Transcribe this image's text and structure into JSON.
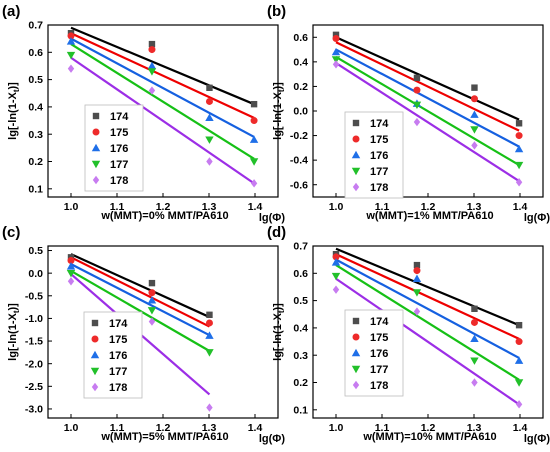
{
  "chart_data": [
    {
      "type": "scatter",
      "panel_label": "(a)",
      "xlabel": "lg(Φ)",
      "ylabel": "lg[-ln(1-X",
      "ylabel_sub": "t",
      "ylabel_end": ")]",
      "caption": "w(MMT)=0% MMT/PA610",
      "xlim": [
        0.95,
        1.45
      ],
      "ylim": [
        0.07,
        0.7
      ],
      "xticks": [
        1.0,
        1.1,
        1.2,
        1.3,
        1.4
      ],
      "yticks": [
        0.1,
        0.2,
        0.3,
        0.4,
        0.5,
        0.6,
        0.7
      ],
      "series": [
        {
          "name": "174",
          "x": [
            1.0,
            1.176,
            1.301,
            1.398
          ],
          "y": [
            0.67,
            0.63,
            0.47,
            0.41
          ],
          "fit": [
            [
              1.0,
              0.69
            ],
            [
              1.398,
              0.41
            ]
          ]
        },
        {
          "name": "175",
          "x": [
            1.0,
            1.176,
            1.301,
            1.398
          ],
          "y": [
            0.66,
            0.61,
            0.42,
            0.35
          ],
          "fit": [
            [
              1.0,
              0.67
            ],
            [
              1.398,
              0.36
            ]
          ]
        },
        {
          "name": "176",
          "x": [
            1.0,
            1.176,
            1.301,
            1.398
          ],
          "y": [
            0.64,
            0.55,
            0.36,
            0.28
          ],
          "fit": [
            [
              1.0,
              0.65
            ],
            [
              1.398,
              0.29
            ]
          ]
        },
        {
          "name": "177",
          "x": [
            1.0,
            1.176,
            1.301,
            1.398
          ],
          "y": [
            0.59,
            0.53,
            0.28,
            0.2
          ],
          "fit": [
            [
              1.0,
              0.63
            ],
            [
              1.398,
              0.21
            ]
          ]
        },
        {
          "name": "178",
          "x": [
            1.0,
            1.176,
            1.301,
            1.398
          ],
          "y": [
            0.54,
            0.46,
            0.2,
            0.12
          ],
          "fit": [
            [
              1.0,
              0.58
            ],
            [
              1.398,
              0.12
            ]
          ]
        }
      ]
    },
    {
      "type": "scatter",
      "panel_label": "(b)",
      "xlabel": "lg(Φ)",
      "ylabel": "lg[-ln(1-X",
      "ylabel_sub": "t",
      "ylabel_end": ")]",
      "caption": "w(MMT)=1% MMT/PA610",
      "xlim": [
        0.95,
        1.45
      ],
      "ylim": [
        -0.7,
        0.7
      ],
      "xticks": [
        1.0,
        1.1,
        1.2,
        1.3,
        1.4
      ],
      "yticks": [
        -0.6,
        -0.4,
        -0.2,
        0.0,
        0.2,
        0.4,
        0.6
      ],
      "series": [
        {
          "name": "174",
          "x": [
            1.0,
            1.176,
            1.301,
            1.398
          ],
          "y": [
            0.62,
            0.27,
            0.19,
            -0.1
          ],
          "fit": [
            [
              1.0,
              0.6
            ],
            [
              1.398,
              -0.07
            ]
          ]
        },
        {
          "name": "175",
          "x": [
            1.0,
            1.176,
            1.301,
            1.398
          ],
          "y": [
            0.59,
            0.17,
            0.1,
            -0.2
          ],
          "fit": [
            [
              1.0,
              0.56
            ],
            [
              1.398,
              -0.16
            ]
          ]
        },
        {
          "name": "176",
          "x": [
            1.0,
            1.176,
            1.301,
            1.398
          ],
          "y": [
            0.48,
            0.06,
            -0.03,
            -0.31
          ],
          "fit": [
            [
              1.0,
              0.5
            ],
            [
              1.398,
              -0.29
            ]
          ]
        },
        {
          "name": "177",
          "x": [
            1.0,
            1.176,
            1.301,
            1.398
          ],
          "y": [
            0.42,
            0.05,
            -0.15,
            -0.44
          ],
          "fit": [
            [
              1.0,
              0.44
            ],
            [
              1.398,
              -0.44
            ]
          ]
        },
        {
          "name": "178",
          "x": [
            1.0,
            1.176,
            1.301,
            1.398
          ],
          "y": [
            0.38,
            -0.09,
            -0.28,
            -0.58
          ],
          "fit": [
            [
              1.0,
              0.39
            ],
            [
              1.398,
              -0.57
            ]
          ]
        }
      ]
    },
    {
      "type": "scatter",
      "panel_label": "(c)",
      "xlabel": "lg(Φ)",
      "ylabel": "lg[-ln(1-X",
      "ylabel_sub": "t",
      "ylabel_end": ")]",
      "caption": "w(MMT)=5% MMT/PA610",
      "xlim": [
        0.95,
        1.45
      ],
      "ylim": [
        -3.2,
        0.6
      ],
      "xticks": [
        1.0,
        1.1,
        1.2,
        1.3,
        1.4
      ],
      "yticks": [
        -3.0,
        -2.5,
        -2.0,
        -1.5,
        -1.0,
        -0.5,
        0.0,
        0.5
      ],
      "series": [
        {
          "name": "174",
          "x": [
            1.0,
            1.176,
            1.301
          ],
          "y": [
            0.35,
            -0.22,
            -0.92
          ],
          "fit": [
            [
              1.0,
              0.42
            ],
            [
              1.301,
              -0.97
            ]
          ]
        },
        {
          "name": "175",
          "x": [
            1.0,
            1.176,
            1.301
          ],
          "y": [
            0.28,
            -0.43,
            -1.1
          ],
          "fit": [
            [
              1.0,
              0.35
            ],
            [
              1.301,
              -1.18
            ]
          ]
        },
        {
          "name": "176",
          "x": [
            1.0,
            1.176,
            1.301
          ],
          "y": [
            0.15,
            -0.6,
            -1.38
          ],
          "fit": [
            [
              1.0,
              0.2
            ],
            [
              1.301,
              -1.37
            ]
          ]
        },
        {
          "name": "177",
          "x": [
            1.0,
            1.176,
            1.301
          ],
          "y": [
            0.0,
            -0.82,
            -1.75
          ],
          "fit": [
            [
              1.0,
              0.05
            ],
            [
              1.301,
              -1.72
            ]
          ]
        },
        {
          "name": "178",
          "x": [
            1.0,
            1.176,
            1.301
          ],
          "y": [
            -0.18,
            -1.07,
            -2.97
          ],
          "fit": [
            [
              1.0,
              -0.02
            ],
            [
              1.301,
              -2.68
            ]
          ]
        }
      ]
    },
    {
      "type": "scatter",
      "panel_label": "(d)",
      "xlabel": "lg(Φ)",
      "ylabel": "lg[-ln(1-X",
      "ylabel_sub": "t",
      "ylabel_end": ")]",
      "caption": "w(MMT)=10% MMT/PA610",
      "xlim": [
        0.95,
        1.45
      ],
      "ylim": [
        0.07,
        0.7
      ],
      "xticks": [
        1.0,
        1.1,
        1.2,
        1.3,
        1.4
      ],
      "yticks": [
        0.1,
        0.2,
        0.3,
        0.4,
        0.5,
        0.6,
        0.7
      ],
      "series": [
        {
          "name": "174",
          "x": [
            1.0,
            1.176,
            1.301,
            1.398
          ],
          "y": [
            0.67,
            0.63,
            0.47,
            0.41
          ],
          "fit": [
            [
              1.0,
              0.69
            ],
            [
              1.398,
              0.41
            ]
          ]
        },
        {
          "name": "175",
          "x": [
            1.0,
            1.176,
            1.301,
            1.398
          ],
          "y": [
            0.66,
            0.61,
            0.42,
            0.35
          ],
          "fit": [
            [
              1.0,
              0.67
            ],
            [
              1.398,
              0.36
            ]
          ]
        },
        {
          "name": "176",
          "x": [
            1.0,
            1.176,
            1.301,
            1.398
          ],
          "y": [
            0.64,
            0.58,
            0.36,
            0.28
          ],
          "fit": [
            [
              1.0,
              0.65
            ],
            [
              1.398,
              0.29
            ]
          ]
        },
        {
          "name": "177",
          "x": [
            1.0,
            1.176,
            1.301,
            1.398
          ],
          "y": [
            0.59,
            0.53,
            0.28,
            0.2
          ],
          "fit": [
            [
              1.0,
              0.63
            ],
            [
              1.398,
              0.21
            ]
          ]
        },
        {
          "name": "178",
          "x": [
            1.0,
            1.176,
            1.301,
            1.398
          ],
          "y": [
            0.54,
            0.46,
            0.2,
            0.12
          ],
          "fit": [
            [
              1.0,
              0.58
            ],
            [
              1.398,
              0.12
            ]
          ]
        }
      ]
    }
  ],
  "styles": {
    "series": [
      {
        "marker": "square",
        "marker_color": "#4d4d4d",
        "line_color": "#000000"
      },
      {
        "marker": "circle",
        "marker_color": "#ee2a2a",
        "line_color": "#ee0000"
      },
      {
        "marker": "triangle-up",
        "marker_color": "#1f6fe8",
        "line_color": "#1560e0"
      },
      {
        "marker": "triangle-down",
        "marker_color": "#22c02a",
        "line_color": "#16c016"
      },
      {
        "marker": "diamond",
        "marker_color": "#c77cf0",
        "line_color": "#9c2ee6"
      }
    ]
  }
}
